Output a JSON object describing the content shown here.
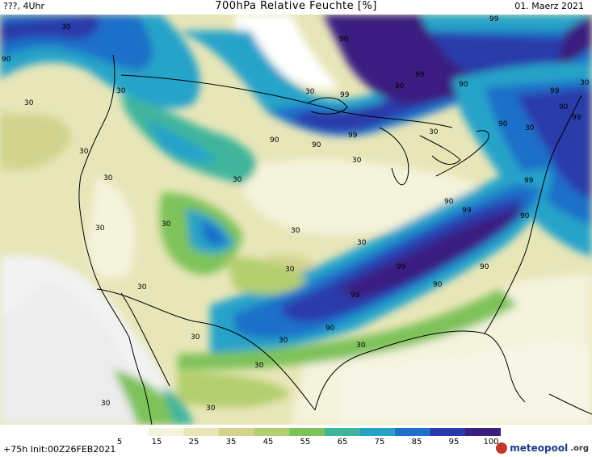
{
  "header": {
    "left": "???, 4Uhr",
    "title": "700hPa Relative Feuchte [%]",
    "date": "01. Maerz 2021"
  },
  "footer": {
    "init": "+75h Init:00Z26FEB2021",
    "brand": "meteopool",
    "brand_suffix": ".org"
  },
  "colorbar": {
    "ticks": [
      "5",
      "15",
      "25",
      "35",
      "45",
      "55",
      "65",
      "75",
      "85",
      "95",
      "100"
    ],
    "colors": [
      "#ffffff",
      "#f4f3dc",
      "#e8e6b8",
      "#d2d48e",
      "#b4cf6e",
      "#7ec25a",
      "#3fb59c",
      "#26a3c9",
      "#1f6fc9",
      "#2a3aaa",
      "#3a1f80"
    ]
  },
  "contour_labels": [
    {
      "text": "30"
    },
    {
      "text": "90"
    },
    {
      "text": "30"
    },
    {
      "text": "30"
    },
    {
      "text": "30"
    },
    {
      "text": "30"
    },
    {
      "text": "90"
    },
    {
      "text": "99"
    },
    {
      "text": "90"
    },
    {
      "text": "99"
    },
    {
      "text": "90"
    },
    {
      "text": "99"
    },
    {
      "text": "90"
    },
    {
      "text": "99"
    },
    {
      "text": "30"
    },
    {
      "text": "90"
    },
    {
      "text": "90"
    },
    {
      "text": "99"
    },
    {
      "text": "30"
    },
    {
      "text": "30"
    },
    {
      "text": "30"
    },
    {
      "text": "30"
    },
    {
      "text": "30"
    },
    {
      "text": "30"
    },
    {
      "text": "30"
    },
    {
      "text": "90"
    },
    {
      "text": "99"
    },
    {
      "text": "99"
    },
    {
      "text": "90"
    },
    {
      "text": "30"
    },
    {
      "text": "99"
    },
    {
      "text": "90"
    },
    {
      "text": "99"
    },
    {
      "text": "90"
    },
    {
      "text": "30"
    },
    {
      "text": "30"
    },
    {
      "text": "30"
    },
    {
      "text": "30"
    },
    {
      "text": "30"
    },
    {
      "text": "30"
    },
    {
      "text": "99"
    },
    {
      "text": "90"
    }
  ]
}
